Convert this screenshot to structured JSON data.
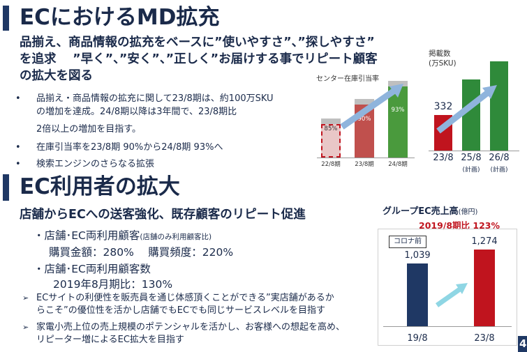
{
  "section1": {
    "title": "ECにおけるMD拡充",
    "lead": [
      "品揃え、商品情報の拡充をベースに”使いやすさ”、”探しやすさ”",
      "を追求　 ”早く”、”安く”、”正しく”お届けする事でリピート顧客",
      "の拡大を図る"
    ],
    "bullets": [
      [
        "品揃え・商品情報の拡充に関して23/8期は、約100万SKU",
        "の増加を達成。24/8期以降は3年間で、23/8期比",
        "2倍以上の増加を目指す。"
      ],
      [
        "在庫引当率を23/8期 90%から24/8期 93%へ"
      ],
      [
        "検索エンジンのさらなる拡張"
      ]
    ],
    "bullet_marker": "•"
  },
  "section2": {
    "title": "EC利用者の拡大",
    "lead": "店舗からECへの送客強化、既存顧客のリピート促進",
    "stat1_head": "・店舗･EC両利用顧客",
    "stat1_note": "(店舗のみ利用顧客比)",
    "stat1_values": "購買金額：280%　 購買頻度：220%",
    "stat2_head": "・店舗･EC両利用顧客数",
    "stat2_values": "2019年8月期比：130%",
    "arrow_bullets": [
      [
        "ECサイトの利便性を販売員を通じ体感頂くことができる”実店舗があるか",
        "らこそ”の優位性を活かし店舗でもECでも同じサービスレベルを目指す"
      ],
      [
        "家電小売上位の売上規模のポテンシャルを活かし、お客様への想起を高め、",
        "リピーター増によるEC拡大を目指す"
      ]
    ],
    "arrow_marker": "➢"
  },
  "page_number": "4",
  "chart_data": [
    {
      "type": "bar",
      "title": "センター在庫引当率",
      "categories": [
        "22/8期",
        "23/8期",
        "24/8期"
      ],
      "values": [
        85,
        90,
        93
      ],
      "value_labels": [
        "85%",
        "90%",
        "93%"
      ],
      "colors": [
        "#e9c7c7",
        "#c0504d",
        "#4a9a3d"
      ],
      "cap_color": "#bfbfbf"
    },
    {
      "type": "bar",
      "ylabel_lines": [
        "掲載数",
        "(万SKU)"
      ],
      "categories": [
        "23/8",
        "25/8",
        "26/8"
      ],
      "category_notes": [
        "",
        "(計画)",
        "(計画)"
      ],
      "values": [
        332,
        664,
        830
      ],
      "value_labels": [
        "332",
        "",
        ""
      ],
      "colors": [
        "#c0141e",
        "#2f8a3a",
        "#2f8a3a"
      ]
    },
    {
      "type": "bar",
      "title": "グループEC売上高",
      "title_unit": "(億円)",
      "subtitle": "2019/8期比 123%",
      "annotation": "コロナ前",
      "categories": [
        "19/8",
        "23/8"
      ],
      "values": [
        1039,
        1274
      ],
      "value_labels": [
        "1,039",
        "1,274"
      ],
      "colors": [
        "#1f3864",
        "#c0141e"
      ]
    }
  ],
  "colors": {
    "title_bar": "#1f3864",
    "arrow": "#8fb4dc",
    "subtitle_red": "#c0141e"
  }
}
